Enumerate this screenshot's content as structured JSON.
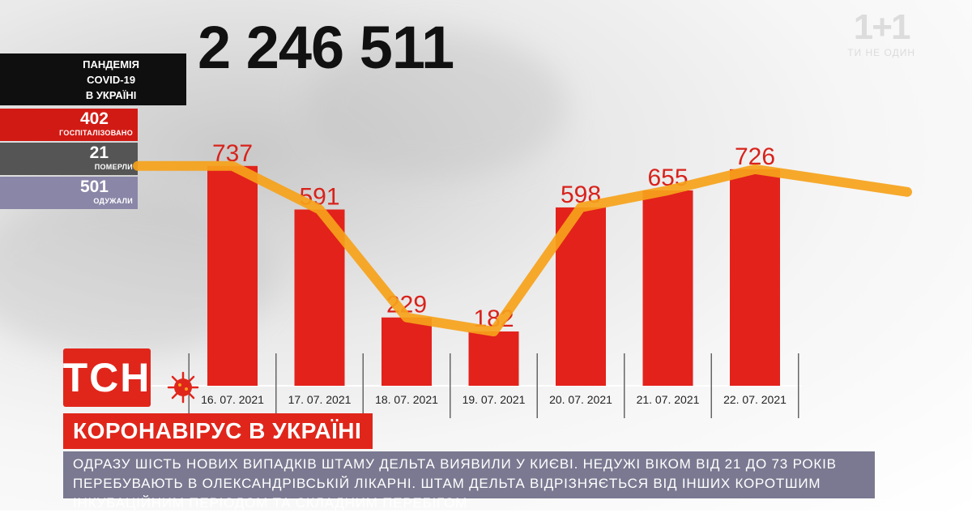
{
  "stats": {
    "total_cases": "2 246 511",
    "title": "ПАНДЕМІЯ\nCOVID-19\nВ УКРАЇНІ",
    "hospitalized": {
      "value": "402",
      "label": "ГОСПІТАЛІЗОВАНО",
      "color": "#d21a14"
    },
    "died": {
      "value": "21",
      "label": "ПОМЕРЛИ",
      "color": "#555555"
    },
    "recovered": {
      "value": "501",
      "label": "ОДУЖАЛИ",
      "color": "#8a86a8"
    }
  },
  "channel": {
    "logo": "1+1",
    "tagline": "ТИ НЕ ОДИН"
  },
  "tsn": {
    "logo": "ТСН",
    "headline": "КОРОНАВІРУС В УКРАЇНІ",
    "ticker": "ОДРАЗУ ШІСТЬ НОВИХ ВИПАДКІВ ШТАМУ ДЕЛЬТА ВИЯВИЛИ У КИЄВІ. НЕДУЖІ ВІКОМ ВІД 21 ДО 73 РОКІВ ПЕРЕБУВАЮТЬ В ОЛЕКСАНДРІВСЬКІЙ ЛІКАРНІ. ШТАМ ДЕЛЬТА ВІДРІЗНЯЄТЬСЯ ВІД ІНШИХ КОРОТШИМ ІНКУБАЦІЙНИМ ПЕРІОДОМ ТА СКЛАДНИМ ПЕРЕБІГОМ"
  },
  "colors": {
    "bar": "#e3221b",
    "trend": "#f6a21a",
    "bar_label": "#d8221b",
    "accent": "#e0261b"
  },
  "icons": [
    "virus-icon"
  ],
  "chart_data": {
    "type": "bar",
    "categories": [
      "16. 07. 2021",
      "17. 07. 2021",
      "18. 07. 2021",
      "19. 07. 2021",
      "20. 07. 2021",
      "21. 07. 2021",
      "22. 07. 2021"
    ],
    "values": [
      737,
      591,
      229,
      182,
      598,
      655,
      726
    ],
    "trend_line": true,
    "ylim": [
      0,
      800
    ],
    "title": "",
    "xlabel": "",
    "ylabel": "",
    "grid": false,
    "legend": "none"
  }
}
